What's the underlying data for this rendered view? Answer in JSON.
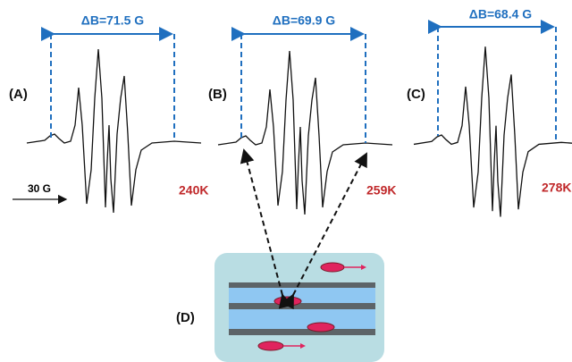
{
  "panels": [
    {
      "label": "(A)",
      "delta": "ΔB=71.5 G",
      "temperature": "240K"
    },
    {
      "label": "(B)",
      "delta": "ΔB=69.9 G",
      "temperature": "259K"
    },
    {
      "label": "(C)",
      "delta": "ΔB=68.4 G",
      "temperature": "278K"
    }
  ],
  "scale_bar": "30 G",
  "schematic": {
    "label": "(D)"
  }
}
